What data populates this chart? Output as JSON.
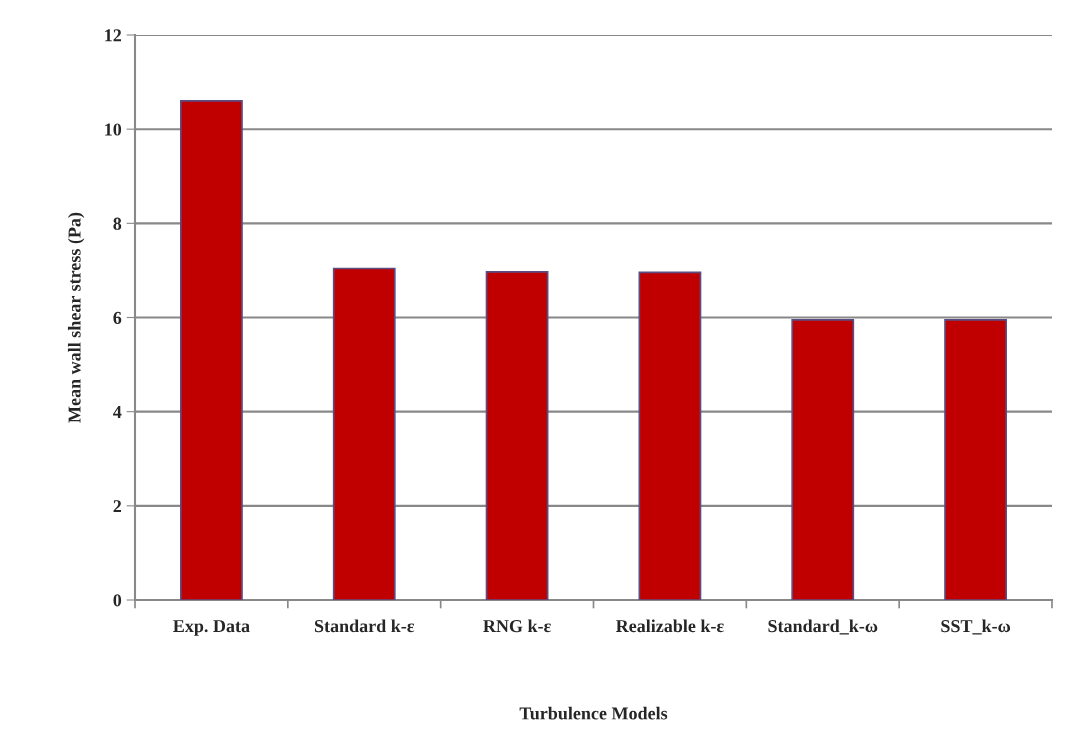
{
  "chart_data": {
    "type": "bar",
    "xlabel": "Turbulence Models",
    "ylabel": "Mean wall shear stress (Pa)",
    "categories": [
      "Exp. Data",
      "Standard k-ε",
      "RNG k-ε",
      "Realizable k-ε",
      "Standard_k-ω",
      "SST_k-ω"
    ],
    "values": [
      10.6,
      7.04,
      6.97,
      6.96,
      5.95,
      5.95
    ],
    "color": "#c00000",
    "ylim": [
      0,
      12
    ],
    "yticks": [
      0,
      2,
      4,
      6,
      8,
      10,
      12
    ],
    "grid": "y",
    "legend": false
  }
}
